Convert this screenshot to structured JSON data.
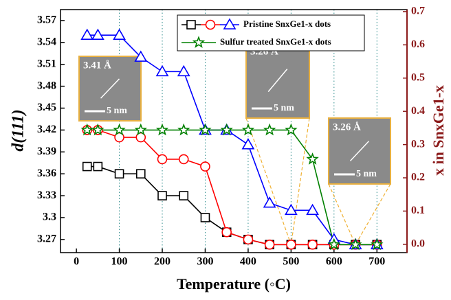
{
  "chart_data": {
    "type": "line",
    "xlabel": "Temperature (◦C)",
    "ylabel": "d(111)",
    "y2label": "x in SnxGe1-x",
    "x": [
      25,
      50,
      100,
      150,
      200,
      250,
      300,
      350,
      400,
      450,
      500,
      550,
      600,
      650,
      700
    ],
    "series": [
      {
        "color": "#000000",
        "marker": "square",
        "values": [
          3.37,
          3.37,
          3.36,
          3.36,
          3.33,
          3.33,
          3.3,
          3.28,
          3.27,
          3.263,
          3.263,
          3.263,
          3.263,
          3.263,
          3.263
        ]
      },
      {
        "color": "#ff0000",
        "marker": "circle",
        "values": [
          3.42,
          3.42,
          3.41,
          3.41,
          3.38,
          3.38,
          3.37,
          3.28,
          3.27,
          3.263,
          3.263,
          3.263,
          3.263,
          3.263,
          3.263
        ]
      },
      {
        "name": "Pristine SnxGe1-x dots",
        "color": "#0000ff",
        "marker": "triangle",
        "values": [
          3.55,
          3.55,
          3.55,
          3.52,
          3.5,
          3.5,
          3.42,
          3.42,
          3.4,
          3.32,
          3.31,
          3.31,
          3.27,
          3.263,
          3.263
        ]
      },
      {
        "name": "Sulfur treated SnxGe1-x dots",
        "color": "#008000",
        "marker": "star",
        "values": [
          3.42,
          3.42,
          3.42,
          3.42,
          3.42,
          3.42,
          3.42,
          3.42,
          3.42,
          3.42,
          3.42,
          3.38,
          3.263,
          3.263,
          3.263
        ]
      }
    ],
    "xlim": [
      -37,
      770
    ],
    "xticks": [
      0,
      100,
      200,
      300,
      400,
      500,
      600,
      700
    ],
    "ylim": [
      3.252,
      3.585
    ],
    "yticks": [
      3.27,
      3.3,
      3.33,
      3.36,
      3.39,
      3.42,
      3.45,
      3.48,
      3.51,
      3.54,
      3.57
    ],
    "y2lim": [
      -0.025,
      0.706
    ],
    "y2ticks": [
      {
        "value": 0,
        "label": "0.0"
      },
      0.1,
      0.2,
      0.3,
      0.4,
      0.5,
      0.6,
      0.7
    ],
    "grid": "x",
    "insets": [
      {
        "spacing": "3.41 Å",
        "scale": "5 nm"
      },
      {
        "spacing": "3.26 Å",
        "scale": "5 nm"
      },
      {
        "spacing": "3.26 Å",
        "scale": "5 nm"
      }
    ]
  }
}
